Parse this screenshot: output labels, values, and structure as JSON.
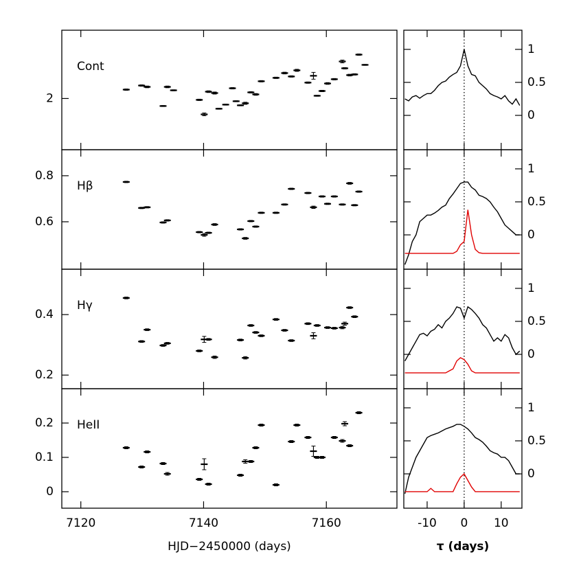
{
  "chart_data": [
    {
      "type": "errorbar",
      "label": "Cont",
      "x": [
        7127.4,
        7129.9,
        7130.8,
        7133.4,
        7134.1,
        7135.1,
        7139.3,
        7140.1,
        7140.8,
        7141.8,
        7142.5,
        7143.6,
        7144.7,
        7145.3,
        7146.0,
        7146.8,
        7147.7,
        7148.5,
        7149.4,
        7151.8,
        7153.2,
        7154.3,
        7155.2,
        7157.0,
        7157.9,
        7158.5,
        7159.3,
        7160.2,
        7161.3,
        7162.6,
        7163.0,
        7163.8,
        7164.6,
        7165.3,
        7166.3
      ],
      "values": [
        2.052,
        2.076,
        2.068,
        1.956,
        2.068,
        2.048,
        1.992,
        1.907,
        2.04,
        2.032,
        1.94,
        1.964,
        2.06,
        1.984,
        1.96,
        1.972,
        2.036,
        2.024,
        2.101,
        2.121,
        2.149,
        2.129,
        2.165,
        2.093,
        2.133,
        2.016,
        2.044,
        2.088,
        2.113,
        2.217,
        2.177,
        2.137,
        2.141,
        2.257,
        2.197
      ],
      "errors": [
        0.004,
        0.004,
        0.005,
        0.003,
        0.005,
        0.003,
        0.004,
        0.008,
        0.005,
        0.006,
        0.003,
        0.003,
        0.004,
        0.003,
        0.003,
        0.006,
        0.004,
        0.005,
        0.004,
        0.004,
        0.005,
        0.004,
        0.006,
        0.004,
        0.02,
        0.003,
        0.004,
        0.005,
        0.004,
        0.008,
        0.004,
        0.005,
        0.004,
        0.004,
        0.003
      ],
      "color": "#000000",
      "xlim": [
        7116.9,
        7171.5
      ],
      "xticks": [
        7120,
        7140,
        7160
      ],
      "ylim": [
        1.7,
        2.4
      ],
      "yticks": [
        2
      ]
    },
    {
      "type": "errorbar",
      "label": "Hβ",
      "x": [
        7127.4,
        7129.9,
        7130.8,
        7133.4,
        7134.1,
        7139.3,
        7140.1,
        7140.8,
        7141.8,
        7146.0,
        7146.8,
        7147.7,
        7148.5,
        7149.4,
        7151.8,
        7153.2,
        7154.3,
        7157.0,
        7157.9,
        7159.3,
        7160.2,
        7161.3,
        7162.6,
        7163.8,
        7164.6,
        7165.3
      ],
      "values": [
        0.773,
        0.66,
        0.663,
        0.597,
        0.606,
        0.555,
        0.543,
        0.552,
        0.588,
        0.567,
        0.528,
        0.603,
        0.579,
        0.639,
        0.639,
        0.675,
        0.743,
        0.725,
        0.663,
        0.71,
        0.678,
        0.71,
        0.675,
        0.767,
        0.672,
        0.731
      ],
      "errors": [
        0.003,
        0.003,
        0.003,
        0.003,
        0.003,
        0.003,
        0.006,
        0.003,
        0.004,
        0.003,
        0.004,
        0.003,
        0.003,
        0.003,
        0.003,
        0.003,
        0.003,
        0.003,
        0.005,
        0.003,
        0.003,
        0.003,
        0.003,
        0.004,
        0.003,
        0.003
      ],
      "color": "#000000",
      "xlim": [
        7116.9,
        7171.5
      ],
      "xticks": [
        7120,
        7140,
        7160
      ],
      "ylim": [
        0.394,
        0.913
      ],
      "yticks": [
        0.6,
        0.8
      ]
    },
    {
      "type": "errorbar",
      "label": "Hγ",
      "x": [
        7127.4,
        7129.9,
        7130.8,
        7133.4,
        7134.1,
        7139.3,
        7140.1,
        7140.8,
        7141.8,
        7146.0,
        7146.8,
        7147.7,
        7148.5,
        7149.4,
        7151.8,
        7153.2,
        7154.3,
        7157.0,
        7157.9,
        7158.5,
        7160.2,
        7161.3,
        7162.6,
        7163.0,
        7163.8,
        7164.6
      ],
      "values": [
        0.455,
        0.311,
        0.35,
        0.298,
        0.305,
        0.28,
        0.318,
        0.318,
        0.259,
        0.316,
        0.257,
        0.364,
        0.341,
        0.33,
        0.384,
        0.348,
        0.314,
        0.37,
        0.33,
        0.364,
        0.357,
        0.355,
        0.357,
        0.37,
        0.423,
        0.393
      ],
      "errors": [
        0.003,
        0.003,
        0.003,
        0.003,
        0.003,
        0.003,
        0.01,
        0.003,
        0.004,
        0.003,
        0.004,
        0.003,
        0.003,
        0.003,
        0.003,
        0.003,
        0.003,
        0.003,
        0.01,
        0.003,
        0.003,
        0.003,
        0.004,
        0.005,
        0.003,
        0.003
      ],
      "color": "#000000",
      "xlim": [
        7116.9,
        7171.5
      ],
      "xticks": [
        7120,
        7140,
        7160
      ],
      "ylim": [
        0.155,
        0.55
      ],
      "yticks": [
        0.2,
        0.4
      ]
    },
    {
      "type": "errorbar",
      "label": "HeII",
      "x": [
        7127.4,
        7129.9,
        7130.8,
        7133.4,
        7134.1,
        7139.3,
        7140.1,
        7140.8,
        7146.0,
        7146.8,
        7147.7,
        7148.5,
        7149.4,
        7151.8,
        7154.3,
        7155.2,
        7157.0,
        7157.9,
        7158.5,
        7159.3,
        7161.3,
        7162.6,
        7163.0,
        7163.8,
        7165.3
      ],
      "values": [
        0.128,
        0.072,
        0.116,
        0.082,
        0.052,
        0.036,
        0.08,
        0.022,
        0.048,
        0.088,
        0.088,
        0.128,
        0.194,
        0.02,
        0.146,
        0.194,
        0.158,
        0.118,
        0.1,
        0.1,
        0.158,
        0.148,
        0.198,
        0.134,
        0.23
      ],
      "errors": [
        0.003,
        0.003,
        0.003,
        0.003,
        0.004,
        0.003,
        0.016,
        0.003,
        0.003,
        0.005,
        0.003,
        0.003,
        0.003,
        0.003,
        0.003,
        0.003,
        0.003,
        0.015,
        0.003,
        0.003,
        0.003,
        0.004,
        0.006,
        0.003,
        0.003
      ],
      "color": "#000000",
      "xlim": [
        7116.9,
        7171.5
      ],
      "xticks": [
        7120,
        7140,
        7160
      ],
      "ylim": [
        -0.048,
        0.3
      ],
      "yticks": [
        0,
        0.1,
        0.2
      ],
      "xlabel": "HJD−2450000 (days)"
    },
    {
      "type": "line",
      "vline": 0,
      "x": [
        -16,
        -15,
        -14,
        -13,
        -12,
        -11,
        -10,
        -9,
        -8,
        -7,
        -6,
        -5,
        -4,
        -3,
        -2,
        -1,
        0,
        1,
        2,
        3,
        4,
        5,
        6,
        7,
        8,
        9,
        10,
        11,
        12,
        13,
        14,
        15
      ],
      "series": [
        {
          "color": "#000000",
          "values": [
            0.25,
            0.22,
            0.28,
            0.3,
            0.26,
            0.3,
            0.33,
            0.33,
            0.38,
            0.45,
            0.5,
            0.52,
            0.58,
            0.62,
            0.65,
            0.75,
            1.0,
            0.75,
            0.62,
            0.6,
            0.5,
            0.45,
            0.4,
            0.33,
            0.3,
            0.28,
            0.25,
            0.3,
            0.22,
            0.17,
            0.25,
            0.15
          ]
        }
      ],
      "xlim": [
        -16.3,
        15.6
      ],
      "xticks": [
        -10,
        0,
        10
      ],
      "ylim": [
        -0.52,
        1.29
      ],
      "yticks": [
        0,
        0.5,
        1
      ]
    },
    {
      "type": "line",
      "vline": 0,
      "x": [
        -16,
        -15,
        -14,
        -13,
        -12,
        -11,
        -10,
        -9,
        -8,
        -7,
        -6,
        -5,
        -4,
        -3,
        -2,
        -1,
        0,
        1,
        2,
        3,
        4,
        5,
        6,
        7,
        8,
        9,
        10,
        11,
        12,
        13,
        14,
        15
      ],
      "series": [
        {
          "color": "#000000",
          "values": [
            -0.45,
            -0.3,
            -0.1,
            0.0,
            0.2,
            0.25,
            0.3,
            0.3,
            0.33,
            0.37,
            0.42,
            0.45,
            0.55,
            0.62,
            0.7,
            0.78,
            0.8,
            0.8,
            0.72,
            0.68,
            0.6,
            0.58,
            0.55,
            0.5,
            0.42,
            0.35,
            0.25,
            0.15,
            0.1,
            0.05,
            0.0,
            0.0
          ]
        },
        {
          "color": "#e00000",
          "values": [
            -0.28,
            -0.28,
            -0.28,
            -0.28,
            -0.28,
            -0.28,
            -0.28,
            -0.28,
            -0.28,
            -0.28,
            -0.28,
            -0.28,
            -0.28,
            -0.28,
            -0.25,
            -0.15,
            -0.1,
            0.38,
            0.0,
            -0.22,
            -0.27,
            -0.28,
            -0.28,
            -0.28,
            -0.28,
            -0.28,
            -0.28,
            -0.28,
            -0.28,
            -0.28,
            -0.28,
            -0.28
          ]
        }
      ],
      "xlim": [
        -16.3,
        15.6
      ],
      "xticks": [
        -10,
        0,
        10
      ],
      "ylim": [
        -0.52,
        1.29
      ],
      "yticks": [
        0,
        0.5,
        1
      ]
    },
    {
      "type": "line",
      "vline": 0,
      "x": [
        -16,
        -15,
        -14,
        -13,
        -12,
        -11,
        -10,
        -9,
        -8,
        -7,
        -6,
        -5,
        -4,
        -3,
        -2,
        -1,
        0,
        1,
        2,
        3,
        4,
        5,
        6,
        7,
        8,
        9,
        10,
        11,
        12,
        13,
        14,
        15
      ],
      "series": [
        {
          "color": "#000000",
          "values": [
            -0.1,
            0.0,
            0.1,
            0.2,
            0.3,
            0.32,
            0.28,
            0.35,
            0.38,
            0.45,
            0.4,
            0.5,
            0.55,
            0.62,
            0.72,
            0.7,
            0.55,
            0.72,
            0.68,
            0.62,
            0.55,
            0.45,
            0.4,
            0.3,
            0.2,
            0.25,
            0.2,
            0.3,
            0.25,
            0.1,
            0.0,
            0.05
          ]
        },
        {
          "color": "#e00000",
          "values": [
            -0.28,
            -0.28,
            -0.28,
            -0.28,
            -0.28,
            -0.28,
            -0.28,
            -0.28,
            -0.28,
            -0.28,
            -0.28,
            -0.28,
            -0.25,
            -0.22,
            -0.1,
            -0.05,
            -0.08,
            -0.15,
            -0.25,
            -0.28,
            -0.28,
            -0.28,
            -0.28,
            -0.28,
            -0.28,
            -0.28,
            -0.28,
            -0.28,
            -0.28,
            -0.28,
            -0.28,
            -0.28
          ]
        }
      ],
      "xlim": [
        -16.3,
        15.6
      ],
      "xticks": [
        -10,
        0,
        10
      ],
      "ylim": [
        -0.52,
        1.29
      ],
      "yticks": [
        0,
        0.5,
        1
      ]
    },
    {
      "type": "line",
      "vline": 0,
      "xlabel": "τ (days)",
      "x": [
        -16,
        -15,
        -14,
        -13,
        -12,
        -11,
        -10,
        -9,
        -8,
        -7,
        -6,
        -5,
        -4,
        -3,
        -2,
        -1,
        0,
        1,
        2,
        3,
        4,
        5,
        6,
        7,
        8,
        9,
        10,
        11,
        12,
        13,
        14,
        15
      ],
      "series": [
        {
          "color": "#000000",
          "values": [
            -0.3,
            -0.05,
            0.1,
            0.25,
            0.35,
            0.45,
            0.55,
            0.58,
            0.6,
            0.62,
            0.65,
            0.68,
            0.7,
            0.72,
            0.75,
            0.75,
            0.72,
            0.68,
            0.62,
            0.55,
            0.52,
            0.48,
            0.42,
            0.35,
            0.32,
            0.3,
            0.25,
            0.25,
            0.2,
            0.1,
            0.0,
            0.0
          ]
        },
        {
          "color": "#e00000",
          "values": [
            -0.27,
            -0.27,
            -0.27,
            -0.27,
            -0.27,
            -0.27,
            -0.27,
            -0.22,
            -0.27,
            -0.27,
            -0.27,
            -0.27,
            -0.27,
            -0.27,
            -0.15,
            -0.05,
            0.0,
            -0.1,
            -0.2,
            -0.27,
            -0.27,
            -0.27,
            -0.27,
            -0.27,
            -0.27,
            -0.27,
            -0.27,
            -0.27,
            -0.27,
            -0.27,
            -0.27,
            -0.27
          ]
        }
      ],
      "xlim": [
        -16.3,
        15.6
      ],
      "xticks": [
        -10,
        0,
        10
      ],
      "ylim": [
        -0.52,
        1.29
      ],
      "yticks": [
        0,
        0.5,
        1
      ]
    }
  ]
}
